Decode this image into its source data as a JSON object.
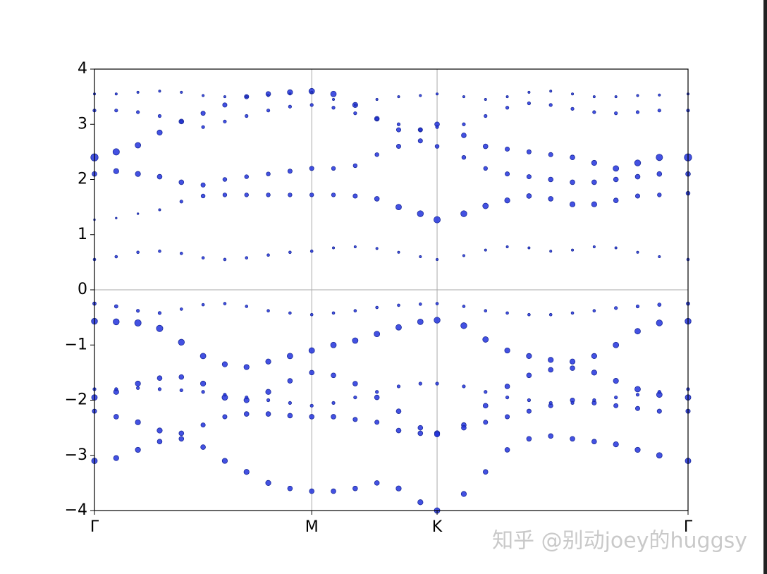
{
  "chart_data": {
    "type": "scatter",
    "color": "#2233dd",
    "watermark": "知乎 @别动joey的huggsy",
    "xlim": [
      0,
      2.732
    ],
    "xticks": [
      {
        "value": 0,
        "label": "Γ"
      },
      {
        "value": 1,
        "label": "M"
      },
      {
        "value": 1.577,
        "label": "K"
      },
      {
        "value": 2.732,
        "label": "Γ"
      }
    ],
    "ylim": [
      -4,
      4
    ],
    "yticks": [
      {
        "value": -4,
        "label": "−4"
      },
      {
        "value": -3,
        "label": "−3"
      },
      {
        "value": -2,
        "label": "−2"
      },
      {
        "value": -1,
        "label": "−1"
      },
      0,
      1,
      2,
      3,
      4
    ],
    "grid": true,
    "axhline": 0,
    "x": [
      0,
      0.1,
      0.2,
      0.3,
      0.4,
      0.5,
      0.6,
      0.7,
      0.8,
      0.9,
      1.0,
      1.1,
      1.2,
      1.3,
      1.4,
      1.5,
      1.577,
      1.7,
      1.8,
      1.9,
      2.0,
      2.1,
      2.2,
      2.3,
      2.4,
      2.5,
      2.6,
      2.732
    ],
    "series": [
      {
        "values": [
          0.55,
          0.6,
          0.68,
          0.7,
          0.66,
          0.58,
          0.55,
          0.58,
          0.63,
          0.68,
          0.7,
          0.76,
          0.78,
          0.75,
          0.68,
          0.6,
          0.55,
          0.62,
          0.72,
          0.78,
          0.76,
          0.7,
          0.72,
          0.78,
          0.76,
          0.68,
          0.6,
          0.55
        ],
        "sizes": [
          0.15,
          0.15,
          0.15,
          0.15,
          0.15,
          0.15,
          0.15,
          0.15,
          0.15,
          0.15,
          0.15,
          0.1,
          0.1,
          0.1,
          0.1,
          0.1,
          0.1,
          0.1,
          0.1,
          0.1,
          0.1,
          0.1,
          0.1,
          0.1,
          0.1,
          0.1,
          0.1,
          0.15
        ]
      },
      {
        "values": [
          1.27,
          1.3,
          1.38,
          1.45,
          1.6,
          1.7,
          1.72,
          1.72,
          1.72,
          1.72,
          1.72,
          1.72,
          1.7,
          1.65,
          1.5,
          1.38,
          1.27,
          1.38,
          1.52,
          1.62,
          1.7,
          1.65,
          1.55,
          1.55,
          1.62,
          1.7,
          1.72,
          1.75
        ],
        "sizes": [
          0.05,
          0.05,
          0.05,
          0.1,
          0.2,
          0.3,
          0.3,
          0.3,
          0.3,
          0.3,
          0.3,
          0.3,
          0.35,
          0.4,
          0.5,
          0.55,
          0.6,
          0.55,
          0.5,
          0.45,
          0.4,
          0.4,
          0.45,
          0.45,
          0.4,
          0.35,
          0.3,
          0.3
        ]
      },
      {
        "values": [
          2.4,
          2.5,
          2.62,
          2.85,
          3.05,
          3.2,
          3.35,
          3.5,
          3.55,
          3.58,
          3.6,
          3.55,
          3.35,
          3.1,
          2.9,
          2.9,
          3.0,
          2.8,
          2.6,
          2.55,
          2.5,
          2.45,
          2.4,
          2.3,
          2.2,
          2.3,
          2.4,
          2.4
        ],
        "sizes": [
          0.7,
          0.6,
          0.5,
          0.45,
          0.4,
          0.35,
          0.35,
          0.35,
          0.4,
          0.45,
          0.5,
          0.5,
          0.45,
          0.4,
          0.35,
          0.35,
          0.4,
          0.4,
          0.4,
          0.35,
          0.35,
          0.35,
          0.4,
          0.45,
          0.5,
          0.55,
          0.6,
          0.7
        ]
      },
      {
        "values": [
          2.1,
          2.15,
          2.1,
          2.05,
          1.95,
          1.9,
          2.0,
          2.05,
          2.1,
          2.15,
          2.2,
          2.2,
          2.25,
          2.45,
          2.6,
          2.7,
          2.6,
          2.4,
          2.2,
          2.1,
          2.05,
          2.0,
          1.95,
          1.95,
          2.0,
          2.05,
          2.1,
          2.1
        ],
        "sizes": [
          0.4,
          0.45,
          0.45,
          0.4,
          0.4,
          0.35,
          0.3,
          0.3,
          0.3,
          0.35,
          0.35,
          0.3,
          0.3,
          0.3,
          0.35,
          0.35,
          0.3,
          0.3,
          0.3,
          0.35,
          0.35,
          0.4,
          0.4,
          0.4,
          0.4,
          0.4,
          0.4,
          0.4
        ]
      },
      {
        "values": [
          3.55,
          3.55,
          3.58,
          3.6,
          3.58,
          3.52,
          3.5,
          3.5,
          3.52,
          3.55,
          3.58,
          3.45,
          3.35,
          3.45,
          3.5,
          3.52,
          3.55,
          3.5,
          3.45,
          3.5,
          3.58,
          3.6,
          3.55,
          3.5,
          3.5,
          3.52,
          3.53,
          3.55
        ],
        "sizes": [
          0.1,
          0.1,
          0.1,
          0.1,
          0.1,
          0.1,
          0.1,
          0.1,
          0.1,
          0.1,
          0.1,
          0.1,
          0.1,
          0.1,
          0.1,
          0.1,
          0.1,
          0.1,
          0.1,
          0.1,
          0.1,
          0.1,
          0.1,
          0.1,
          0.1,
          0.1,
          0.1,
          0.1
        ]
      },
      {
        "values": [
          3.25,
          3.25,
          3.22,
          3.15,
          3.05,
          2.95,
          3.05,
          3.15,
          3.25,
          3.32,
          3.35,
          3.3,
          3.2,
          3.1,
          3.0,
          2.9,
          2.95,
          3.0,
          3.15,
          3.3,
          3.38,
          3.35,
          3.28,
          3.22,
          3.2,
          3.22,
          3.25,
          3.25
        ],
        "sizes": [
          0.2,
          0.2,
          0.2,
          0.2,
          0.2,
          0.2,
          0.2,
          0.2,
          0.2,
          0.2,
          0.2,
          0.2,
          0.2,
          0.2,
          0.2,
          0.2,
          0.2,
          0.2,
          0.2,
          0.2,
          0.2,
          0.2,
          0.2,
          0.2,
          0.2,
          0.2,
          0.2,
          0.2
        ]
      },
      {
        "values": [
          -0.25,
          -0.3,
          -0.38,
          -0.42,
          -0.35,
          -0.27,
          -0.25,
          -0.3,
          -0.38,
          -0.42,
          -0.45,
          -0.42,
          -0.38,
          -0.32,
          -0.28,
          -0.26,
          -0.25,
          -0.3,
          -0.38,
          -0.42,
          -0.45,
          -0.45,
          -0.42,
          -0.38,
          -0.33,
          -0.3,
          -0.27,
          -0.25
        ],
        "sizes": [
          0.25,
          0.25,
          0.2,
          0.2,
          0.15,
          0.15,
          0.15,
          0.15,
          0.15,
          0.15,
          0.15,
          0.15,
          0.15,
          0.15,
          0.15,
          0.15,
          0.15,
          0.15,
          0.15,
          0.15,
          0.15,
          0.15,
          0.15,
          0.15,
          0.2,
          0.2,
          0.25,
          0.25
        ]
      },
      {
        "values": [
          -0.57,
          -0.58,
          -0.6,
          -0.7,
          -0.95,
          -1.2,
          -1.35,
          -1.4,
          -1.3,
          -1.2,
          -1.1,
          -1.0,
          -0.92,
          -0.8,
          -0.68,
          -0.58,
          -0.55,
          -0.65,
          -0.9,
          -1.1,
          -1.2,
          -1.27,
          -1.3,
          -1.2,
          -1.0,
          -0.75,
          -0.6,
          -0.57
        ],
        "sizes": [
          0.55,
          0.55,
          0.6,
          0.6,
          0.55,
          0.5,
          0.45,
          0.45,
          0.45,
          0.5,
          0.5,
          0.5,
          0.5,
          0.5,
          0.5,
          0.5,
          0.55,
          0.55,
          0.5,
          0.45,
          0.45,
          0.45,
          0.45,
          0.45,
          0.5,
          0.5,
          0.55,
          0.55
        ]
      },
      {
        "values": [
          -1.95,
          -1.85,
          -1.7,
          -1.6,
          -1.58,
          -1.7,
          -1.95,
          -2.0,
          -1.85,
          -1.65,
          -1.5,
          -1.55,
          -1.7,
          -1.95,
          -2.2,
          -2.5,
          -2.6,
          -2.45,
          -2.1,
          -1.75,
          -1.55,
          -1.45,
          -1.42,
          -1.5,
          -1.65,
          -1.8,
          -1.9,
          -1.95
        ],
        "sizes": [
          0.5,
          0.45,
          0.45,
          0.4,
          0.4,
          0.45,
          0.5,
          0.45,
          0.45,
          0.4,
          0.4,
          0.4,
          0.4,
          0.4,
          0.4,
          0.4,
          0.45,
          0.4,
          0.4,
          0.4,
          0.4,
          0.4,
          0.4,
          0.45,
          0.45,
          0.5,
          0.5,
          0.5
        ]
      },
      {
        "values": [
          -2.2,
          -2.3,
          -2.4,
          -2.55,
          -2.6,
          -2.45,
          -2.3,
          -2.25,
          -2.25,
          -2.28,
          -2.3,
          -2.3,
          -2.35,
          -2.4,
          -2.55,
          -2.6,
          -2.62,
          -2.5,
          -2.4,
          -2.3,
          -2.2,
          -2.1,
          -2.0,
          -2.05,
          -2.1,
          -2.15,
          -2.2,
          -2.2
        ],
        "sizes": [
          0.35,
          0.4,
          0.45,
          0.45,
          0.4,
          0.35,
          0.35,
          0.4,
          0.4,
          0.4,
          0.4,
          0.4,
          0.35,
          0.35,
          0.4,
          0.4,
          0.45,
          0.4,
          0.35,
          0.35,
          0.35,
          0.35,
          0.35,
          0.35,
          0.35,
          0.35,
          0.35,
          0.35
        ]
      },
      {
        "values": [
          -3.1,
          -3.05,
          -2.9,
          -2.75,
          -2.7,
          -2.85,
          -3.1,
          -3.3,
          -3.5,
          -3.6,
          -3.65,
          -3.65,
          -3.6,
          -3.5,
          -3.6,
          -3.85,
          -4.0,
          -3.7,
          -3.3,
          -2.9,
          -2.7,
          -2.65,
          -2.7,
          -2.75,
          -2.8,
          -2.9,
          -3.0,
          -3.1
        ],
        "sizes": [
          0.5,
          0.45,
          0.45,
          0.4,
          0.4,
          0.4,
          0.45,
          0.45,
          0.45,
          0.4,
          0.4,
          0.4,
          0.4,
          0.4,
          0.45,
          0.45,
          0.5,
          0.45,
          0.4,
          0.4,
          0.4,
          0.4,
          0.4,
          0.4,
          0.45,
          0.45,
          0.5,
          0.5
        ]
      },
      {
        "values": [
          -1.8,
          -1.8,
          -1.78,
          -1.8,
          -1.82,
          -1.85,
          -1.9,
          -1.95,
          -2.0,
          -2.05,
          -2.1,
          -2.05,
          -1.95,
          -1.85,
          -1.75,
          -1.7,
          -1.7,
          -1.75,
          -1.85,
          -1.95,
          -2.0,
          -2.05,
          -2.05,
          -2.0,
          -1.95,
          -1.9,
          -1.85,
          -1.8
        ],
        "sizes": [
          0.2,
          0.2,
          0.2,
          0.2,
          0.2,
          0.2,
          0.2,
          0.2,
          0.2,
          0.2,
          0.2,
          0.2,
          0.2,
          0.2,
          0.2,
          0.2,
          0.2,
          0.2,
          0.2,
          0.2,
          0.2,
          0.2,
          0.2,
          0.2,
          0.2,
          0.2,
          0.2,
          0.2
        ]
      }
    ]
  }
}
